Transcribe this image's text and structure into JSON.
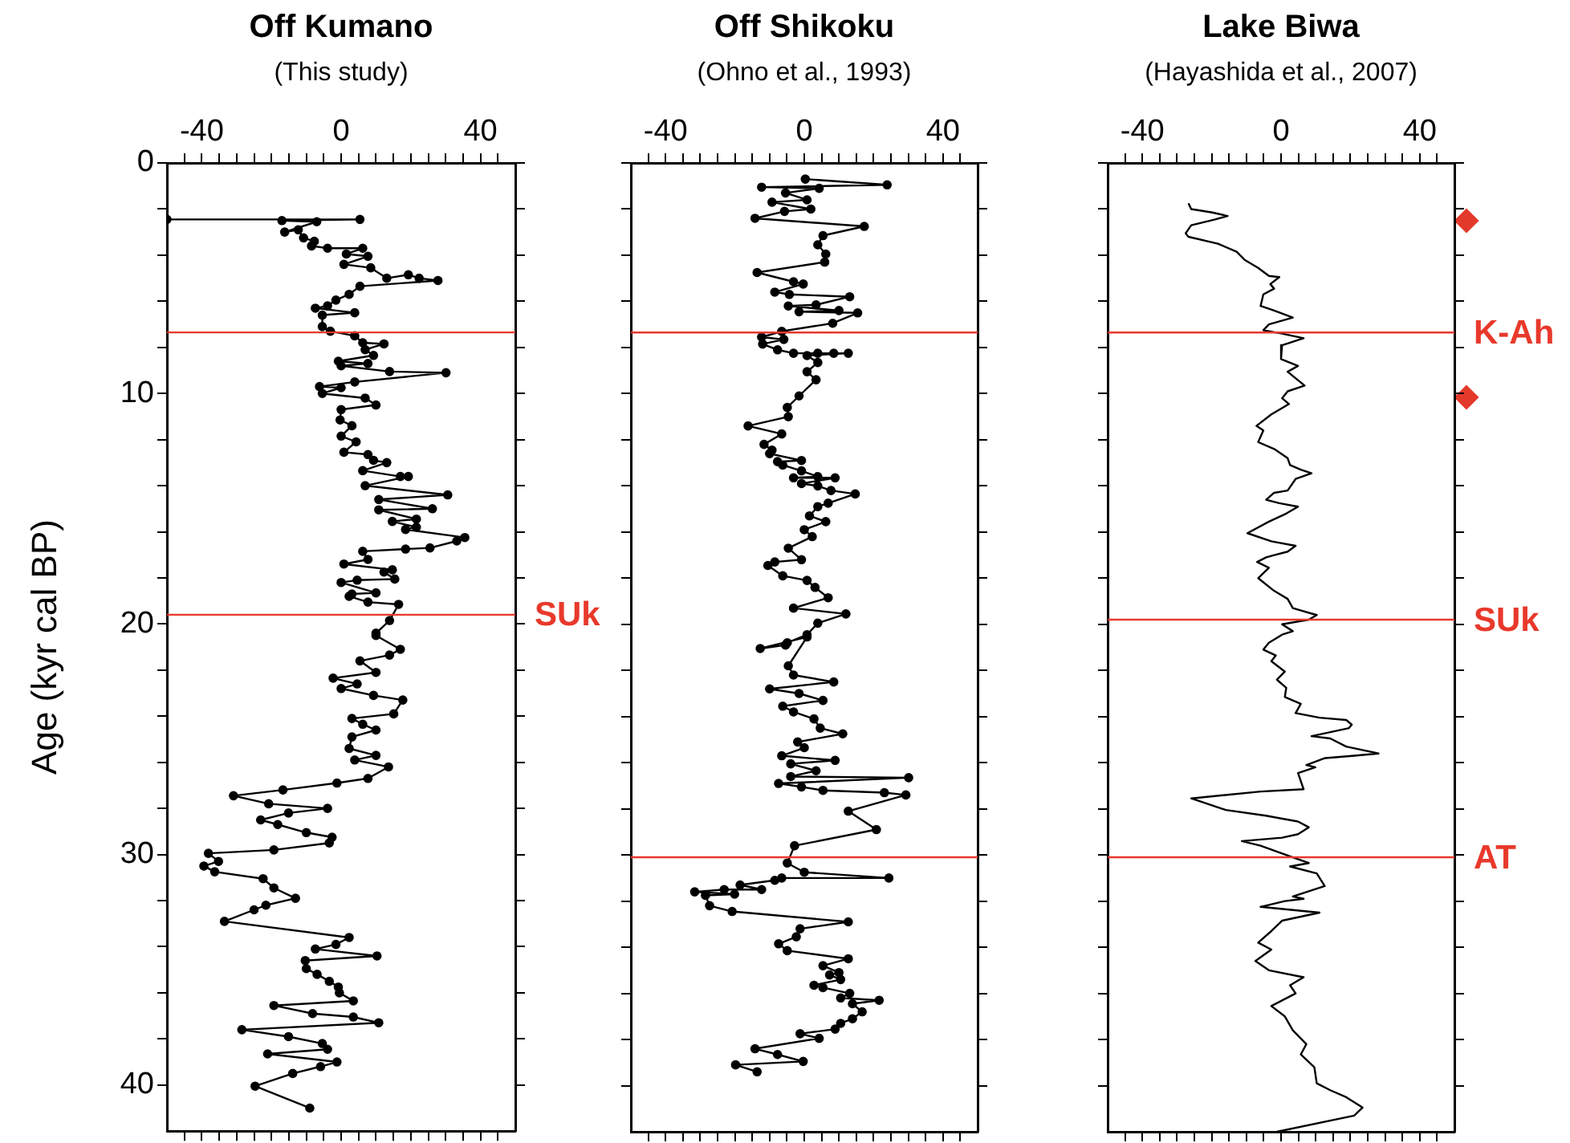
{
  "chart_data": [
    {
      "type": "line",
      "title": "Off Kumano",
      "subtitle": "(This study)",
      "ylabel": "Age (kyr cal BP)",
      "marker": "circle",
      "xlim": [
        -50,
        50
      ],
      "ylim": [
        42,
        0
      ],
      "xticks": [
        {
          "value": -45,
          "label": null
        },
        -40,
        {
          "value": -35,
          "label": null
        },
        {
          "value": -30,
          "label": null
        },
        {
          "value": -25,
          "label": null
        },
        {
          "value": -20,
          "label": null
        },
        {
          "value": -15,
          "label": null
        },
        {
          "value": -10,
          "label": null
        },
        {
          "value": -5,
          "label": null
        },
        0,
        {
          "value": 5,
          "label": null
        },
        {
          "value": 10,
          "label": null
        },
        {
          "value": 15,
          "label": null
        },
        {
          "value": 20,
          "label": null
        },
        {
          "value": 25,
          "label": null
        },
        {
          "value": 30,
          "label": null
        },
        {
          "value": 35,
          "label": null
        },
        40,
        {
          "value": 45,
          "label": null
        }
      ],
      "yticks": [
        0,
        {
          "value": 2,
          "label": null
        },
        {
          "value": 4,
          "label": null
        },
        {
          "value": 6,
          "label": null
        },
        {
          "value": 8,
          "label": null
        },
        10,
        {
          "value": 12,
          "label": null
        },
        {
          "value": 14,
          "label": null
        },
        {
          "value": 16,
          "label": null
        },
        {
          "value": 18,
          "label": null
        },
        20,
        {
          "value": 22,
          "label": null
        },
        {
          "value": 24,
          "label": null
        },
        {
          "value": 26,
          "label": null
        },
        {
          "value": 28,
          "label": null
        },
        30,
        {
          "value": 32,
          "label": null
        },
        {
          "value": 34,
          "label": null
        },
        {
          "value": 36,
          "label": null
        },
        {
          "value": 38,
          "label": null
        },
        40
      ],
      "ref_lines": [
        {
          "axis": "y",
          "value": 7.35,
          "color": "#e8392b"
        },
        {
          "axis": "y",
          "value": 19.6,
          "label": "SUk",
          "color": "#e8392b"
        }
      ],
      "series": [
        {
          "color": "#000000",
          "x": [
            -50,
            5.4,
            -17,
            -7,
            -16.2,
            -12.3,
            -10.8,
            -7.7,
            -8.5,
            -3.9,
            6.2,
            1.5,
            7.7,
            0.8,
            8.5,
            13.1,
            19.3,
            22.4,
            27.8,
            5.4,
            2.3,
            -1.5,
            -3.9,
            -7.4,
            3.9,
            -5.4,
            -5.4,
            -3.1,
            3.9,
            6.2,
            12.3,
            6.9,
            9.3,
            -0.8,
            7.7,
            0,
            13.9,
            30.1,
            3.9,
            -6.2,
            0,
            -5.4,
            6.9,
            10,
            0,
            -0.3,
            3.1,
            0,
            4.3,
            0.8,
            7.7,
            9.3,
            13.1,
            6.2,
            17,
            19.3,
            6.9,
            30.6,
            10.8,
            26.2,
            10.8,
            21.6,
            14.7,
            21.6,
            18.5,
            35.5,
            33.2,
            25.5,
            18.5,
            6.2,
            7.7,
            0.8,
            14.7,
            12.3,
            15.4,
            4.6,
            0,
            10,
            3.1,
            2.3,
            7.7,
            16.5,
            13.9,
            10,
            10,
            17,
            13.9,
            5.4,
            10,
            -2.3,
            4.6,
            0,
            9.3,
            17.7,
            15.1,
            3.1,
            6.2,
            10,
            3.1,
            2.3,
            10,
            3.9,
            13.6,
            7.7,
            -1.2,
            -16.7,
            -30.9,
            -20.8,
            -3.9,
            -15.1,
            -23.1,
            -18.2,
            -10,
            -2.6,
            -3.4,
            -19.3,
            -38.1,
            -35.2,
            -39.4,
            -36.3,
            -22.4,
            -19.3,
            -13.1,
            -21.6,
            -25,
            -33.5,
            2.3,
            -1.5,
            -7.4,
            10.3,
            -10.3,
            -10,
            -6.9,
            -3.4,
            -0.8,
            -0.5,
            3.5,
            -19.3,
            -8.2,
            3.5,
            10.8,
            -28.5,
            -15.1,
            -5.4,
            -3.9,
            -21.1,
            -1.2,
            -5.9,
            -13.9,
            -24.7,
            -9
          ],
          "values": [
            2.45,
            2.45,
            2.5,
            2.55,
            3.0,
            2.9,
            3.25,
            3.4,
            3.6,
            3.7,
            3.7,
            3.95,
            4.05,
            4.4,
            4.55,
            5.0,
            4.85,
            5.0,
            5.1,
            5.35,
            5.7,
            5.95,
            6.2,
            6.3,
            6.5,
            6.6,
            7.1,
            7.3,
            7.5,
            7.8,
            7.85,
            8.1,
            8.35,
            8.6,
            8.7,
            8.8,
            9.05,
            9.1,
            9.5,
            9.7,
            9.75,
            10.0,
            10.2,
            10.5,
            10.7,
            11.15,
            11.4,
            11.85,
            12.1,
            12.55,
            12.65,
            12.9,
            13.0,
            13.35,
            13.6,
            13.6,
            14.0,
            14.4,
            14.6,
            15.0,
            15.05,
            15.45,
            15.55,
            15.8,
            15.9,
            16.25,
            16.4,
            16.7,
            16.75,
            16.85,
            17.2,
            17.4,
            17.65,
            17.75,
            18.05,
            18.1,
            18.2,
            18.65,
            18.7,
            18.8,
            19.05,
            19.15,
            19.85,
            20.4,
            20.5,
            21.1,
            21.35,
            21.6,
            22.1,
            22.35,
            22.6,
            22.8,
            23.1,
            23.3,
            23.9,
            24.1,
            24.35,
            24.6,
            24.9,
            25.4,
            25.7,
            25.9,
            26.2,
            26.7,
            26.9,
            27.2,
            27.45,
            27.8,
            28.0,
            28.2,
            28.5,
            28.7,
            29.05,
            29.25,
            29.5,
            29.8,
            29.95,
            30.3,
            30.5,
            30.75,
            31.05,
            31.45,
            31.9,
            32.2,
            32.4,
            32.9,
            33.6,
            33.9,
            34.1,
            34.4,
            34.6,
            34.95,
            35.2,
            35.5,
            35.75,
            36.0,
            36.35,
            36.55,
            36.9,
            37.05,
            37.3,
            37.6,
            37.9,
            38.2,
            38.45,
            38.65,
            39.0,
            39.2,
            39.5,
            40.05,
            41.0
          ]
        }
      ]
    },
    {
      "type": "line",
      "title": "Off Shikoku",
      "subtitle": "(Ohno et al., 1993)",
      "marker": "circle",
      "tick_labels": "x",
      "xlim": [
        -50,
        50
      ],
      "ylim": [
        42,
        0
      ],
      "xticks": [
        {
          "value": -45,
          "label": null
        },
        -40,
        {
          "value": -35,
          "label": null
        },
        {
          "value": -30,
          "label": null
        },
        {
          "value": -25,
          "label": null
        },
        {
          "value": -20,
          "label": null
        },
        {
          "value": -15,
          "label": null
        },
        {
          "value": -10,
          "label": null
        },
        {
          "value": -5,
          "label": null
        },
        0,
        {
          "value": 5,
          "label": null
        },
        {
          "value": 10,
          "label": null
        },
        {
          "value": 15,
          "label": null
        },
        {
          "value": 20,
          "label": null
        },
        {
          "value": 25,
          "label": null
        },
        {
          "value": 30,
          "label": null
        },
        {
          "value": 35,
          "label": null
        },
        40,
        {
          "value": 45,
          "label": null
        }
      ],
      "yticks": [
        0,
        {
          "value": 2,
          "label": null
        },
        {
          "value": 4,
          "label": null
        },
        {
          "value": 6,
          "label": null
        },
        {
          "value": 8,
          "label": null
        },
        10,
        {
          "value": 12,
          "label": null
        },
        {
          "value": 14,
          "label": null
        },
        {
          "value": 16,
          "label": null
        },
        {
          "value": 18,
          "label": null
        },
        20,
        {
          "value": 22,
          "label": null
        },
        {
          "value": 24,
          "label": null
        },
        {
          "value": 26,
          "label": null
        },
        {
          "value": 28,
          "label": null
        },
        30,
        {
          "value": 32,
          "label": null
        },
        {
          "value": 34,
          "label": null
        },
        {
          "value": 36,
          "label": null
        },
        {
          "value": 38,
          "label": null
        },
        40
      ],
      "ref_lines": [
        {
          "axis": "y",
          "value": 7.35,
          "color": "#e8392b"
        },
        {
          "axis": "y",
          "value": 30.1,
          "color": "#e8392b"
        }
      ],
      "series": [
        {
          "color": "#000000",
          "x": [
            0.3,
            23.9,
            -12.3,
            4.3,
            -5.4,
            0.8,
            -9.3,
            1.9,
            -5.7,
            -14.2,
            17.3,
            5.4,
            3.9,
            6.2,
            5.9,
            -13.6,
            -3.1,
            -0.3,
            -8.5,
            -4.3,
            13.1,
            3.4,
            -4.6,
            10,
            -1.5,
            15.4,
            8.2,
            -6.5,
            -12.3,
            -5.9,
            -12,
            -7.7,
            -3.1,
            3.9,
            8.5,
            12.7,
            0.8,
            3.9,
            0.8,
            3.4,
            -1.5,
            -4.9,
            -4.6,
            -16.2,
            -6.5,
            -11.6,
            -9.3,
            -10,
            -0.8,
            -7.7,
            -6.2,
            -0.8,
            3.9,
            -3.1,
            8.9,
            -0.8,
            3.9,
            7.7,
            14.7,
            6.9,
            3.9,
            1.5,
            6.2,
            0,
            2.3,
            -4.6,
            -0.8,
            -8.5,
            -10.5,
            -6.2,
            0.8,
            3.1,
            6.9,
            -3.1,
            12,
            3.9,
            0.8,
            -4.9,
            -5.4,
            -12.7,
            0.8,
            -4.6,
            -3.1,
            8.5,
            -10,
            -1.5,
            5.4,
            -6.2,
            -3.1,
            2.8,
            4.6,
            11.1,
            -1.9,
            0,
            -6.5,
            8.9,
            -3.9,
            3.4,
            -3.9,
            30.1,
            -7.4,
            -0.8,
            5.4,
            23.1,
            29.3,
            12.7,
            20.8,
            -2.8,
            -4.9,
            0,
            24.4,
            -6.5,
            -8.5,
            -18.5,
            -12.3,
            -23.1,
            -31.6,
            -20.1,
            -28.5,
            -27.3,
            -20.8,
            12.7,
            -1.2,
            -2.3,
            -7.4,
            -4.9,
            12.7,
            5.4,
            10,
            7.3,
            10.5,
            2.8,
            5.4,
            13.1,
            10.5,
            21.6,
            13.9,
            16.7,
            13.9,
            10.5,
            8.9,
            -1.2,
            4.3,
            -14.2,
            -7.7,
            -0.3,
            -19.8,
            -13.6
          ],
          "values": [
            0.7,
            0.95,
            1.05,
            1.1,
            1.3,
            1.6,
            1.7,
            2.0,
            2.1,
            2.4,
            2.75,
            3.15,
            3.55,
            3.95,
            4.3,
            4.75,
            5.15,
            5.25,
            5.6,
            5.7,
            5.8,
            6.15,
            6.2,
            6.4,
            6.45,
            6.5,
            6.95,
            7.3,
            7.55,
            7.65,
            7.85,
            8.1,
            8.25,
            8.25,
            8.25,
            8.25,
            8.35,
            8.65,
            9.05,
            9.4,
            10.1,
            10.6,
            11.0,
            11.4,
            11.75,
            12.2,
            12.45,
            12.6,
            12.9,
            12.95,
            13.1,
            13.35,
            13.6,
            13.65,
            13.65,
            13.9,
            14.0,
            14.2,
            14.35,
            14.75,
            14.9,
            15.3,
            15.55,
            15.9,
            16.2,
            16.7,
            17.2,
            17.3,
            17.45,
            17.9,
            18.1,
            18.4,
            18.85,
            19.3,
            19.55,
            19.95,
            20.45,
            20.8,
            20.9,
            21.05,
            20.55,
            21.8,
            22.2,
            22.5,
            22.8,
            23.0,
            23.3,
            23.55,
            23.8,
            24.1,
            24.5,
            24.75,
            25.1,
            25.35,
            25.7,
            25.9,
            26.05,
            26.35,
            26.6,
            26.65,
            26.9,
            27.05,
            27.2,
            27.3,
            27.4,
            28.1,
            28.9,
            29.6,
            30.35,
            30.75,
            31.0,
            31.0,
            31.1,
            31.3,
            31.5,
            31.5,
            31.6,
            31.7,
            31.75,
            32.2,
            32.45,
            32.9,
            33.2,
            33.55,
            33.85,
            34.15,
            34.5,
            34.8,
            35.1,
            35.2,
            35.4,
            35.65,
            35.75,
            36.0,
            36.2,
            36.3,
            36.45,
            36.8,
            37.1,
            37.3,
            37.55,
            37.75,
            37.95,
            38.4,
            38.65,
            38.95,
            39.1,
            39.4
          ]
        }
      ]
    },
    {
      "type": "line",
      "title": "Lake Biwa",
      "subtitle": "(Hayashida et al., 2007)",
      "marker": "none",
      "tick_labels": "x",
      "xlim": [
        -50,
        50
      ],
      "ylim": [
        42,
        0
      ],
      "xticks": [
        {
          "value": -45,
          "label": null
        },
        -40,
        {
          "value": -35,
          "label": null
        },
        {
          "value": -30,
          "label": null
        },
        {
          "value": -25,
          "label": null
        },
        {
          "value": -20,
          "label": null
        },
        {
          "value": -15,
          "label": null
        },
        {
          "value": -10,
          "label": null
        },
        {
          "value": -5,
          "label": null
        },
        0,
        {
          "value": 5,
          "label": null
        },
        {
          "value": 10,
          "label": null
        },
        {
          "value": 15,
          "label": null
        },
        {
          "value": 20,
          "label": null
        },
        {
          "value": 25,
          "label": null
        },
        {
          "value": 30,
          "label": null
        },
        {
          "value": 35,
          "label": null
        },
        40,
        {
          "value": 45,
          "label": null
        }
      ],
      "yticks": [
        0,
        {
          "value": 2,
          "label": null
        },
        {
          "value": 4,
          "label": null
        },
        {
          "value": 6,
          "label": null
        },
        {
          "value": 8,
          "label": null
        },
        10,
        {
          "value": 12,
          "label": null
        },
        {
          "value": 14,
          "label": null
        },
        {
          "value": 16,
          "label": null
        },
        {
          "value": 18,
          "label": null
        },
        20,
        {
          "value": 22,
          "label": null
        },
        {
          "value": 24,
          "label": null
        },
        {
          "value": 26,
          "label": null
        },
        {
          "value": 28,
          "label": null
        },
        30,
        {
          "value": 32,
          "label": null
        },
        {
          "value": 34,
          "label": null
        },
        {
          "value": 36,
          "label": null
        },
        {
          "value": 38,
          "label": null
        },
        40
      ],
      "ref_lines": [
        {
          "axis": "y",
          "value": 7.35,
          "label": "K-Ah",
          "color": "#e8392b"
        },
        {
          "axis": "y",
          "value": 19.8,
          "label": "SUk",
          "color": "#e8392b"
        },
        {
          "axis": "y",
          "value": 30.1,
          "label": "AT",
          "color": "#e8392b"
        }
      ],
      "series": [
        {
          "color": "#000000",
          "x": [
            -26.7,
            -25.9,
            -19.8,
            -15.4,
            -19,
            -25.9,
            -27.5,
            -26.7,
            -18.2,
            -12.8,
            -10.5,
            -6.6,
            -3.5,
            -0.5,
            -3.1,
            -2,
            -5.1,
            -5.9,
            -2,
            3.4,
            -3.5,
            -5.1,
            0.3,
            6.5,
            0.3,
            0,
            4.9,
            1.9,
            6.8,
            1.9,
            0.3,
            2.3,
            -2.8,
            -7.1,
            -5.1,
            -6.6,
            -2,
            1.9,
            2.6,
            5.7,
            8.8,
            4.2,
            1.9,
            -2,
            -4.3,
            -0.5,
            4.9,
            1.5,
            -3.5,
            -9.7,
            -2.8,
            4.2,
            1.9,
            -2,
            -4.3,
            -6.9,
            -3.5,
            -6.6,
            -2,
            1.9,
            3.4,
            10.3,
            8.0,
            0.3,
            3.4,
            0.3,
            -3.5,
            -5.1,
            -1.5,
            -2.8,
            1.1,
            -1.2,
            1.5,
            1.1,
            5.7,
            4.2,
            11.1,
            18.8,
            20.4,
            19.6,
            8.8,
            14.2,
            18.8,
            28.1,
            21.1,
            12.7,
            7.3,
            9.9,
            4.9,
            5.7,
            6.5,
            -5.9,
            -25.9,
            -15.9,
            -4.3,
            4.9,
            8,
            4.9,
            0.3,
            -11.3,
            -5.9,
            4.2,
            8,
            2.6,
            10.3,
            12.6,
            3.4,
            6.5,
            1.1,
            -5.9,
            11.1,
            0.3,
            -2.8,
            -6.6,
            -2.8,
            -7.4,
            -3.5,
            6.5,
            2.6,
            4.2,
            -2.8,
            1.1,
            3.4,
            7.3,
            5.7,
            9.6,
            10.3,
            14.2,
            18.8,
            23.5,
            21.1,
            -1.2
          ],
          "values": [
            1.75,
            2.0,
            2.15,
            2.3,
            2.45,
            2.7,
            3.05,
            3.2,
            3.5,
            3.85,
            4.2,
            4.55,
            4.9,
            4.95,
            5.25,
            5.45,
            5.7,
            6.2,
            6.4,
            6.7,
            7.0,
            7.25,
            7.4,
            7.6,
            7.9,
            8.5,
            8.8,
            9.05,
            9.65,
            9.9,
            10.2,
            10.45,
            10.9,
            11.4,
            11.6,
            12.1,
            12.4,
            12.8,
            13.1,
            13.3,
            13.45,
            13.7,
            14.2,
            14.3,
            14.6,
            14.75,
            14.9,
            15.2,
            15.55,
            16.05,
            16.4,
            16.6,
            16.85,
            17.0,
            17.1,
            17.3,
            17.55,
            18.0,
            18.55,
            18.9,
            19.3,
            19.6,
            19.8,
            20.0,
            20.3,
            20.45,
            20.8,
            21.1,
            21.35,
            21.6,
            22.05,
            22.4,
            22.75,
            23.15,
            23.45,
            23.85,
            24.05,
            24.15,
            24.35,
            24.5,
            24.85,
            24.95,
            25.3,
            25.6,
            25.7,
            25.8,
            26.1,
            26.2,
            26.45,
            26.8,
            27.15,
            27.25,
            27.55,
            28.05,
            28.3,
            28.55,
            28.8,
            29.1,
            29.25,
            29.4,
            29.6,
            30.15,
            30.35,
            30.5,
            30.8,
            31.35,
            31.8,
            31.9,
            32.0,
            32.25,
            32.5,
            32.85,
            33.3,
            33.8,
            34.1,
            34.6,
            35.0,
            35.3,
            35.65,
            36.0,
            36.55,
            37.0,
            37.6,
            38.2,
            38.65,
            39.2,
            39.9,
            40.2,
            40.5,
            40.95,
            41.3,
            42.0
          ]
        }
      ]
    }
  ]
}
